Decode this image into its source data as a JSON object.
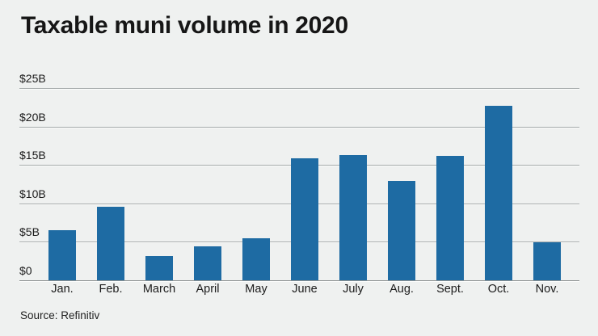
{
  "page": {
    "title": "Taxable muni volume in 2020",
    "source": "Source: Refinitiv"
  },
  "colors": {
    "background": "#eff1f0",
    "bar": "#1e6ba3",
    "gridline": "#a6abab",
    "axis_line": "#8d9292",
    "text": "#1b1b1b"
  },
  "chart_data": {
    "type": "bar",
    "title": "Taxable muni volume in 2020",
    "categories": [
      "Jan.",
      "Feb.",
      "March",
      "April",
      "May",
      "June",
      "July",
      "Aug.",
      "Sept.",
      "Oct.",
      "Nov."
    ],
    "values": [
      6.5,
      9.6,
      3.1,
      4.4,
      5.5,
      15.9,
      16.3,
      12.9,
      16.2,
      22.7,
      4.9
    ],
    "unit": "USD billions",
    "xlabel": "",
    "ylabel": "",
    "ylim": [
      0,
      25
    ],
    "y_ticks": [
      {
        "value": 25,
        "label": "$25B"
      },
      {
        "value": 20,
        "label": "$20B"
      },
      {
        "value": 15,
        "label": "$15B"
      },
      {
        "value": 10,
        "label": "$10B"
      },
      {
        "value": 5,
        "label": "$5B"
      },
      {
        "value": 0,
        "label": "$0"
      }
    ],
    "grid": true,
    "legend": "none",
    "source": "Source: Refinitiv"
  }
}
